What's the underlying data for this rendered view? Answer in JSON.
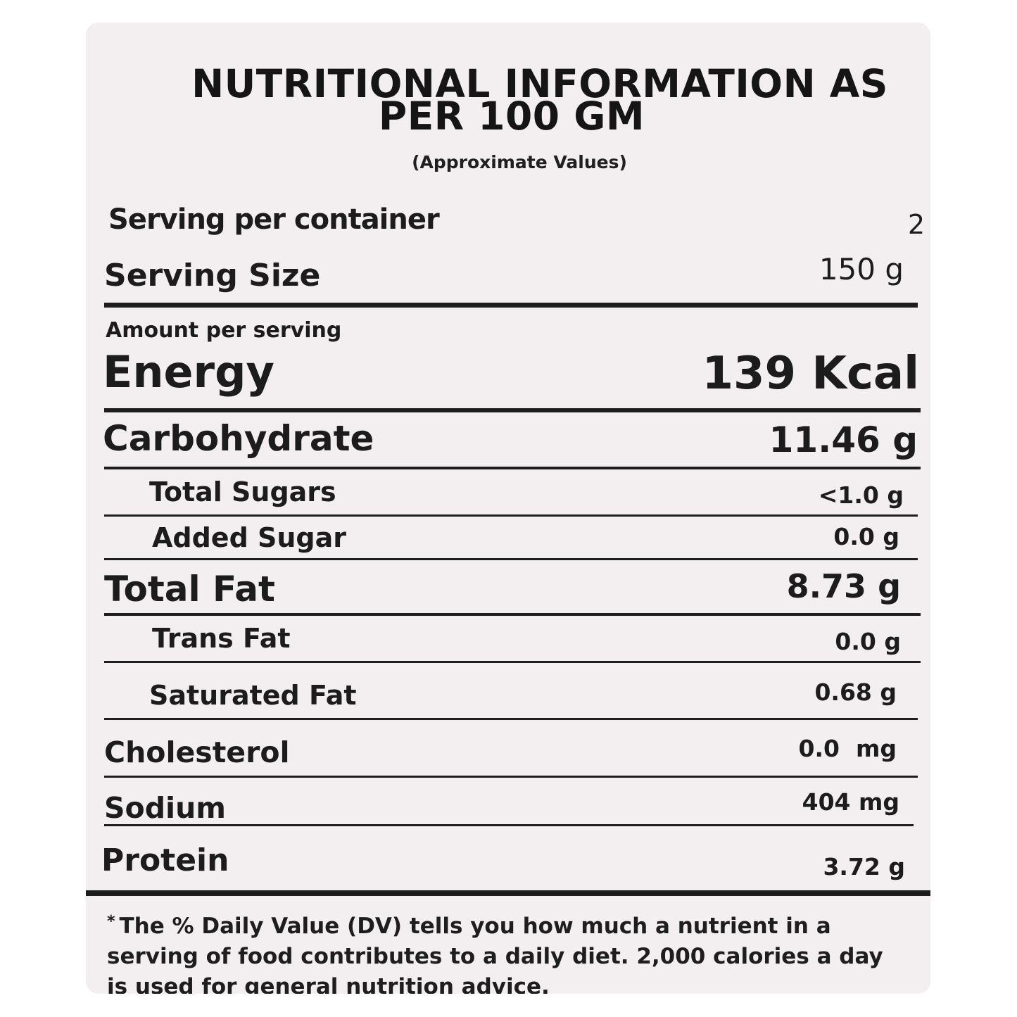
{
  "header": {
    "title_line1": "NUTRITIONAL INFORMATION AS",
    "title_line2": "PER 100 GM",
    "subtitle": "(Approximate Values)"
  },
  "serving": {
    "per_container_label": "Serving per container",
    "per_container_value": "2",
    "size_label": "Serving Size",
    "size_value": "150 g"
  },
  "amount_per_serving_label": "Amount per serving",
  "energy": {
    "label": "Energy",
    "value": "139 Kcal"
  },
  "nutrients": {
    "carbohydrate": {
      "label": "Carbohydrate",
      "value": "11.46 g"
    },
    "total_sugars": {
      "label": "Total Sugars",
      "value": "<1.0 g"
    },
    "added_sugar": {
      "label": "Added Sugar",
      "value": "0.0 g"
    },
    "total_fat": {
      "label": "Total Fat",
      "value": "8.73 g"
    },
    "trans_fat": {
      "label": "Trans Fat",
      "value": "0.0 g"
    },
    "saturated_fat": {
      "label": "Saturated Fat",
      "value": "0.68 g"
    },
    "cholesterol": {
      "label": "Cholesterol",
      "value": "0.0  mg"
    },
    "sodium": {
      "label": "Sodium",
      "value": "404 mg"
    },
    "protein": {
      "label": "Protein",
      "value": "3.72 g"
    }
  },
  "footnote": {
    "marker": "*",
    "text": "The % Daily Value (DV) tells you how much a nutrient in a serving of food contributes to a daily diet. 2,000 calories a day is used for general nutrition advice."
  },
  "colors": {
    "background": "#f3eff1",
    "text": "#1a1a1a",
    "rule": "#1d1d1d"
  }
}
